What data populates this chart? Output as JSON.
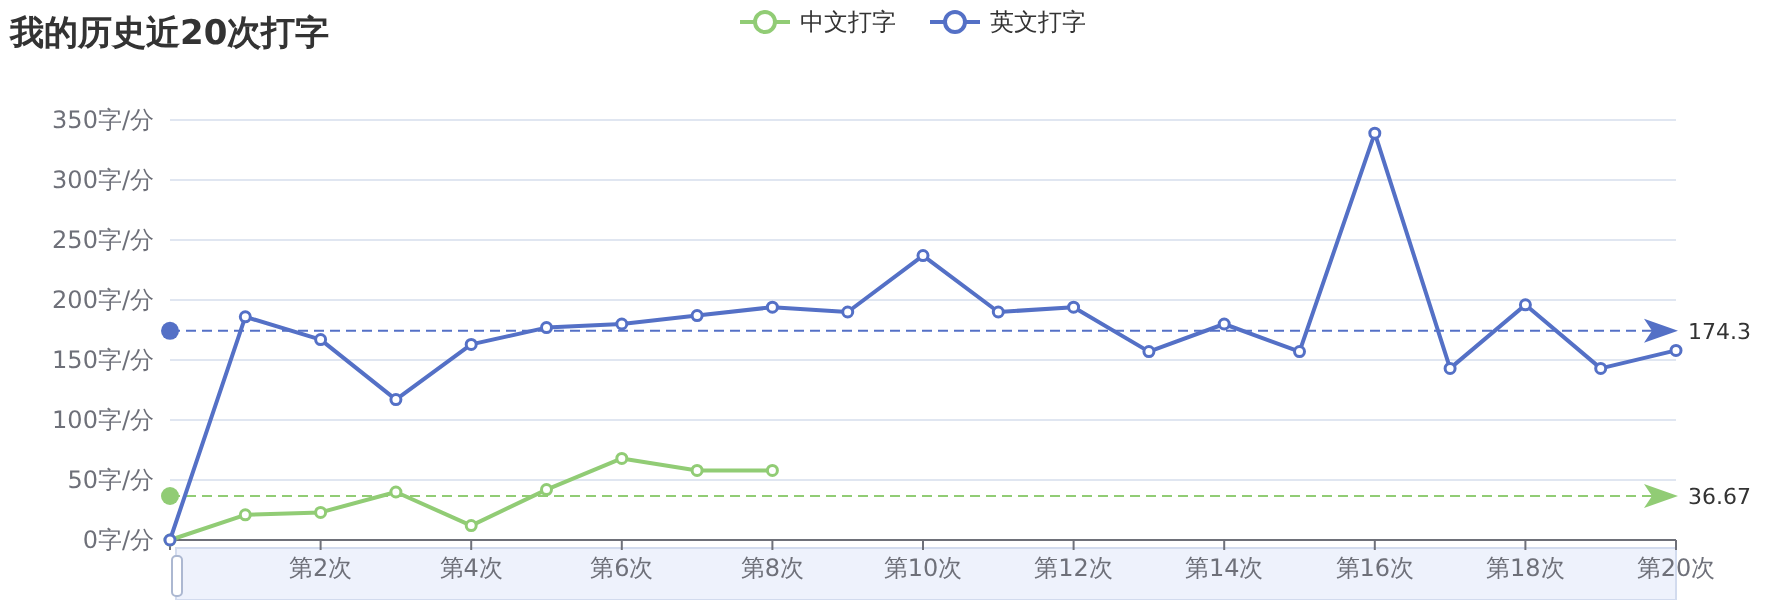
{
  "chart_data": {
    "type": "line",
    "title": "我的历史近20次打字",
    "categories": [
      null,
      null,
      "第2次",
      null,
      "第4次",
      null,
      "第6次",
      null,
      "第8次",
      null,
      "第10次",
      null,
      "第12次",
      null,
      "第14次",
      null,
      "第16次",
      null,
      "第18次",
      null,
      "第20次"
    ],
    "series": [
      {
        "name": "中文打字",
        "color": "#91cc75",
        "values": [
          0,
          21,
          23,
          40,
          12,
          42,
          68,
          58,
          58,
          null,
          null,
          null,
          null,
          null,
          null,
          null,
          null,
          null,
          null,
          null,
          null
        ]
      },
      {
        "name": "英文打字",
        "color": "#5470c6",
        "values": [
          0,
          186,
          167,
          117,
          163,
          177,
          180,
          187,
          194,
          190,
          237,
          190,
          194,
          157,
          180,
          157,
          339,
          143,
          196,
          143,
          158
        ]
      }
    ],
    "ylim": [
      0,
      350
    ],
    "yticks": [
      {
        "value": 0,
        "label": "0字/分"
      },
      {
        "value": 50,
        "label": "50字/分"
      },
      {
        "value": 100,
        "label": "100字/分"
      },
      {
        "value": 150,
        "label": "150字/分"
      },
      {
        "value": 200,
        "label": "200字/分"
      },
      {
        "value": 250,
        "label": "250字/分"
      },
      {
        "value": 300,
        "label": "300字/分"
      },
      {
        "value": 350,
        "label": "350字/分"
      }
    ],
    "ref_lines": [
      {
        "axis": "y",
        "value": 174.3,
        "label": "174.3",
        "color": "#5470c6",
        "line_style": "dashed"
      },
      {
        "axis": "y",
        "value": 36.67,
        "label": "36.67",
        "color": "#91cc75",
        "line_style": "dashed"
      }
    ],
    "grid": "y",
    "legend": "top",
    "marker": "circle",
    "line_style": "solid"
  }
}
